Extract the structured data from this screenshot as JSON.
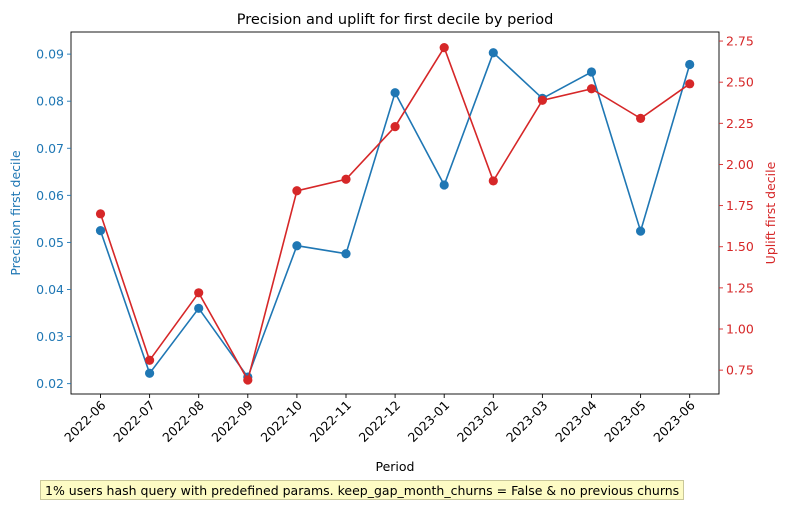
{
  "chart_data": {
    "type": "line",
    "title": "Precision and uplift for first decile by period",
    "xlabel": "Period",
    "categories": [
      "2022-06",
      "2022-07",
      "2022-08",
      "2022-09",
      "2022-10",
      "2022-11",
      "2022-12",
      "2023-01",
      "2023-02",
      "2023-03",
      "2023-04",
      "2023-05",
      "2023-06"
    ],
    "left_axis": {
      "label": "Precision first decile",
      "color": "#1f77b4",
      "ylim": [
        0.0178,
        0.0947
      ],
      "ticks": [
        0.02,
        0.03,
        0.04,
        0.05,
        0.06,
        0.07,
        0.08,
        0.09
      ],
      "tick_labels": [
        "0.02",
        "0.03",
        "0.04",
        "0.05",
        "0.06",
        "0.07",
        "0.08",
        "0.09"
      ]
    },
    "right_axis": {
      "label": "Uplift first decile",
      "color": "#d62728",
      "ylim": [
        0.605,
        2.805
      ],
      "ticks": [
        0.75,
        1.0,
        1.25,
        1.5,
        1.75,
        2.0,
        2.25,
        2.5,
        2.75
      ],
      "tick_labels": [
        "0.75",
        "1.00",
        "1.25",
        "1.50",
        "1.75",
        "2.00",
        "2.25",
        "2.50",
        "2.75"
      ]
    },
    "series": [
      {
        "name": "Precision first decile",
        "axis": "left",
        "color": "#1f77b4",
        "values": [
          0.0525,
          0.0222,
          0.036,
          0.0214,
          0.0493,
          0.0476,
          0.0818,
          0.0622,
          0.0903,
          0.0806,
          0.0862,
          0.0524,
          0.0878
        ]
      },
      {
        "name": "Uplift first decile",
        "axis": "right",
        "color": "#d62728",
        "values": [
          1.7,
          0.81,
          1.22,
          0.69,
          1.84,
          1.91,
          2.23,
          2.71,
          1.9,
          2.39,
          2.46,
          2.28,
          2.49
        ]
      }
    ],
    "grid": false
  },
  "note": "1% users hash query with predefined params. keep_gap_month_churns = False & no previous churns"
}
